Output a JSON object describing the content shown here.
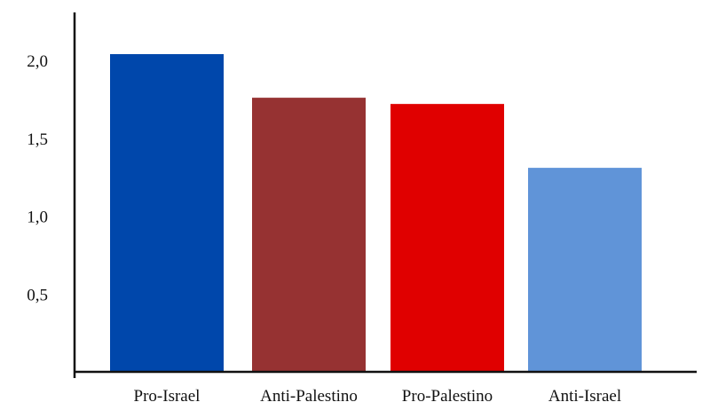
{
  "chart_data": {
    "type": "bar",
    "title": "",
    "xlabel": "",
    "ylabel": "",
    "categories": [
      "Pro-Israel",
      "Anti-Palestino",
      "Pro-Palestino",
      "Anti-Israel"
    ],
    "values": [
      2.04,
      1.76,
      1.72,
      1.31
    ],
    "colors": [
      "#0047ab",
      "#963232",
      "#e00000",
      "#6094d8"
    ],
    "ylim": [
      0,
      2.5
    ],
    "yticks": [
      {
        "value": 0.5,
        "label": "0,5"
      },
      {
        "value": 1.0,
        "label": "1,0"
      },
      {
        "value": 1.5,
        "label": "1,5"
      },
      {
        "value": 2.0,
        "label": "2,0"
      }
    ],
    "grid": false,
    "legend": "none"
  }
}
